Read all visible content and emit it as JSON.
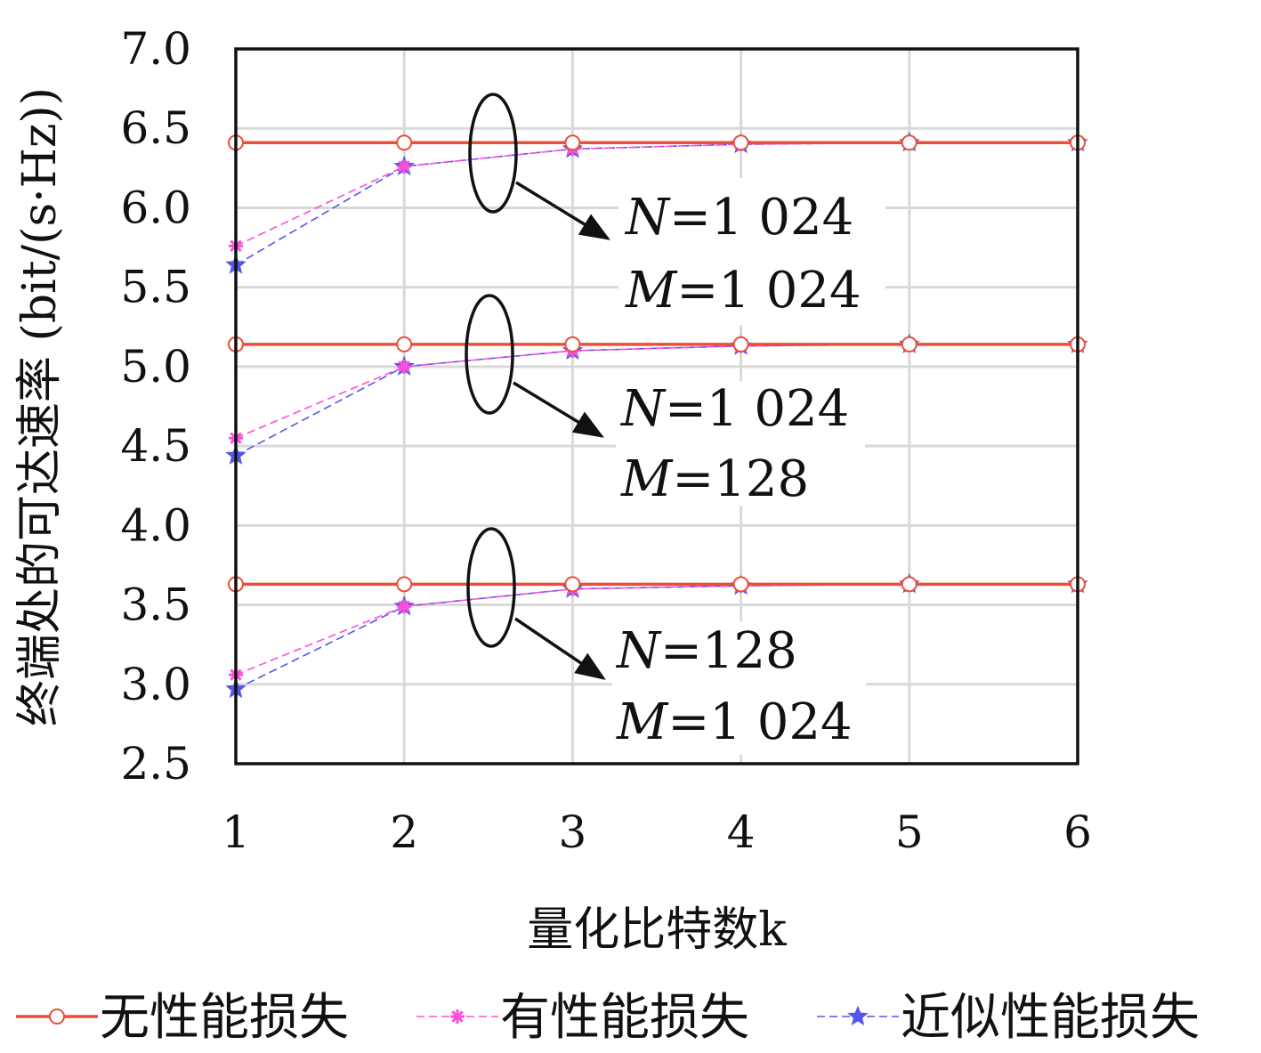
{
  "chart_data": {
    "type": "line",
    "xlabel": "量化比特数k",
    "ylabel": "终端处的可达速率 (bit/(s·Hz))",
    "x": [
      1,
      2,
      3,
      4,
      5,
      6
    ],
    "xlim": [
      1,
      6
    ],
    "ylim": [
      2.5,
      7.0
    ],
    "xticks": [
      "1",
      "2",
      "3",
      "4",
      "5",
      "6"
    ],
    "yticks": [
      "2.5",
      "3.0",
      "3.5",
      "4.0",
      "4.5",
      "5.0",
      "5.5",
      "6.0",
      "6.5",
      "7.0"
    ],
    "grid": true,
    "legend_position": "bottom",
    "legend": [
      {
        "label": "无性能损失",
        "color": "#e8503a",
        "dash": "solid",
        "marker": "circle"
      },
      {
        "label": "有性能损失",
        "color": "#ff4fd8",
        "dash": "dashed",
        "marker": "asterisk"
      },
      {
        "label": "近似性能损失",
        "color": "#5555ee",
        "dash": "dashed",
        "marker": "star"
      }
    ],
    "groups": [
      {
        "annotation": [
          "N=1 024",
          "M=1 024"
        ],
        "series": [
          {
            "legend_index": 0,
            "values": [
              6.41,
              6.41,
              6.41,
              6.41,
              6.41,
              6.41
            ]
          },
          {
            "legend_index": 1,
            "values": [
              5.76,
              6.26,
              6.37,
              6.4,
              6.41,
              6.41
            ]
          },
          {
            "legend_index": 2,
            "values": [
              5.64,
              6.26,
              6.37,
              6.4,
              6.41,
              6.41
            ]
          }
        ]
      },
      {
        "annotation": [
          "N=1 024",
          "M=128"
        ],
        "series": [
          {
            "legend_index": 0,
            "values": [
              5.14,
              5.14,
              5.14,
              5.14,
              5.14,
              5.14
            ]
          },
          {
            "legend_index": 1,
            "values": [
              4.55,
              5.0,
              5.1,
              5.13,
              5.14,
              5.14
            ]
          },
          {
            "legend_index": 2,
            "values": [
              4.44,
              5.0,
              5.1,
              5.13,
              5.14,
              5.14
            ]
          }
        ]
      },
      {
        "annotation": [
          "N=128",
          "M=1 024"
        ],
        "series": [
          {
            "legend_index": 0,
            "values": [
              3.63,
              3.63,
              3.63,
              3.63,
              3.63,
              3.63
            ]
          },
          {
            "legend_index": 1,
            "values": [
              3.06,
              3.49,
              3.6,
              3.62,
              3.63,
              3.63
            ]
          },
          {
            "legend_index": 2,
            "values": [
              2.97,
              3.49,
              3.6,
              3.62,
              3.63,
              3.63
            ]
          }
        ]
      }
    ]
  }
}
